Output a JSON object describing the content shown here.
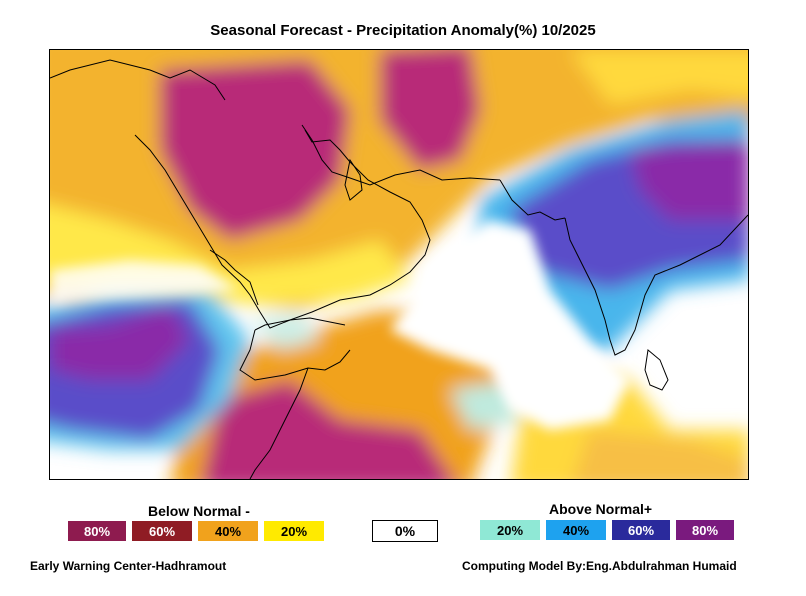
{
  "title": "Seasonal Forecast - Precipitation Anomaly(%) 10/2025",
  "map": {
    "type": "precipitation-anomaly-map",
    "region": "Arabian Peninsula, Horn of Africa, Arabian Sea, India"
  },
  "legend": {
    "below_heading": "Below Normal -",
    "above_heading": "Above Normal+",
    "neutral": {
      "label": "0%",
      "color": "#ffffff"
    },
    "below": [
      {
        "label": "80%",
        "color": "#8e1b4f"
      },
      {
        "label": "60%",
        "color": "#8f1c24"
      },
      {
        "label": "40%",
        "color": "#f1a21c"
      },
      {
        "label": "20%",
        "color": "#ffea00"
      }
    ],
    "above": [
      {
        "label": "20%",
        "color": "#8fe8d5"
      },
      {
        "label": "40%",
        "color": "#1ea2ef"
      },
      {
        "label": "60%",
        "color": "#2a2a9c"
      },
      {
        "label": "80%",
        "color": "#7a1a7e"
      }
    ]
  },
  "footer": {
    "left": "Early Warning Center-Hadhramout",
    "right": "Computing Model By:Eng.Abdulrahman Humaid"
  }
}
